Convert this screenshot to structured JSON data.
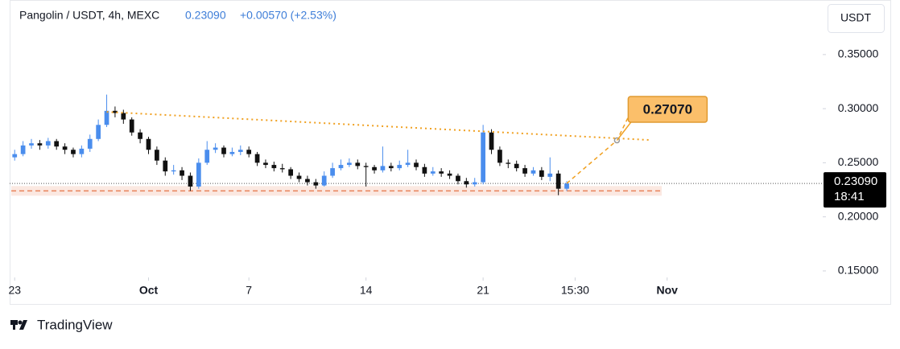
{
  "header": {
    "symbol": "Pangolin / USDT, 4h, MEXC",
    "price": "0.23090",
    "change": "+0.00570 (+2.53%)",
    "currency_button": "USDT"
  },
  "footer": {
    "brand": "TradingView"
  },
  "chart_data": {
    "type": "candlestick",
    "x": [
      0,
      0.5,
      1,
      1.5,
      2,
      2.5,
      3,
      3.5,
      4,
      4.5,
      5,
      5.5,
      6,
      6.5,
      7,
      7.5,
      8,
      8.5,
      9,
      9.5,
      10,
      10.5,
      11,
      11.5,
      12,
      12.5,
      13,
      13.5,
      14,
      14.5,
      15,
      15.5,
      16,
      16.5,
      17,
      17.5,
      18,
      18.5,
      19,
      19.5,
      20,
      20.5,
      21,
      21.5,
      22,
      22.5,
      23,
      23.5,
      24,
      24.5,
      25,
      25.5,
      26,
      26.5,
      27,
      27.5,
      28,
      28.5,
      29,
      29.5,
      30,
      30.5,
      31,
      31.5,
      32,
      32.5,
      33
    ],
    "open": [
      0.255,
      0.258,
      0.266,
      0.268,
      0.266,
      0.27,
      0.265,
      0.262,
      0.258,
      0.263,
      0.272,
      0.285,
      0.298,
      0.296,
      0.29,
      0.278,
      0.272,
      0.262,
      0.252,
      0.242,
      0.243,
      0.238,
      0.228,
      0.25,
      0.262,
      0.264,
      0.258,
      0.26,
      0.262,
      0.258,
      0.25,
      0.248,
      0.245,
      0.244,
      0.238,
      0.235,
      0.232,
      0.229,
      0.238,
      0.245,
      0.248,
      0.25,
      0.247,
      0.246,
      0.243,
      0.247,
      0.245,
      0.248,
      0.25,
      0.246,
      0.24,
      0.242,
      0.24,
      0.238,
      0.233,
      0.23,
      0.232,
      0.278,
      0.262,
      0.25,
      0.249,
      0.245,
      0.24,
      0.243,
      0.237,
      0.24,
      0.226
    ],
    "high": [
      0.262,
      0.27,
      0.272,
      0.271,
      0.273,
      0.272,
      0.268,
      0.264,
      0.266,
      0.276,
      0.29,
      0.313,
      0.302,
      0.299,
      0.292,
      0.281,
      0.274,
      0.265,
      0.255,
      0.248,
      0.246,
      0.241,
      0.254,
      0.27,
      0.268,
      0.266,
      0.264,
      0.266,
      0.265,
      0.26,
      0.253,
      0.251,
      0.249,
      0.246,
      0.241,
      0.238,
      0.235,
      0.242,
      0.25,
      0.253,
      0.254,
      0.253,
      0.25,
      0.248,
      0.265,
      0.25,
      0.252,
      0.262,
      0.253,
      0.249,
      0.246,
      0.245,
      0.243,
      0.24,
      0.236,
      0.236,
      0.285,
      0.281,
      0.265,
      0.253,
      0.252,
      0.248,
      0.246,
      0.246,
      0.255,
      0.243,
      0.233
    ],
    "low": [
      0.252,
      0.256,
      0.263,
      0.262,
      0.263,
      0.262,
      0.258,
      0.255,
      0.255,
      0.26,
      0.27,
      0.283,
      0.292,
      0.286,
      0.275,
      0.268,
      0.258,
      0.248,
      0.238,
      0.239,
      0.234,
      0.224,
      0.226,
      0.248,
      0.259,
      0.255,
      0.256,
      0.257,
      0.255,
      0.247,
      0.245,
      0.242,
      0.241,
      0.235,
      0.232,
      0.229,
      0.226,
      0.228,
      0.236,
      0.243,
      0.246,
      0.244,
      0.228,
      0.24,
      0.241,
      0.242,
      0.243,
      0.246,
      0.243,
      0.237,
      0.238,
      0.237,
      0.235,
      0.23,
      0.227,
      0.228,
      0.23,
      0.258,
      0.247,
      0.245,
      0.242,
      0.237,
      0.238,
      0.234,
      0.233,
      0.22,
      0.224
    ],
    "close": [
      0.258,
      0.266,
      0.268,
      0.266,
      0.27,
      0.265,
      0.262,
      0.258,
      0.263,
      0.272,
      0.285,
      0.298,
      0.296,
      0.29,
      0.278,
      0.272,
      0.262,
      0.252,
      0.242,
      0.243,
      0.238,
      0.228,
      0.25,
      0.262,
      0.264,
      0.258,
      0.26,
      0.262,
      0.258,
      0.25,
      0.248,
      0.245,
      0.244,
      0.238,
      0.235,
      0.232,
      0.229,
      0.238,
      0.245,
      0.248,
      0.25,
      0.247,
      0.246,
      0.243,
      0.247,
      0.245,
      0.248,
      0.25,
      0.246,
      0.24,
      0.242,
      0.24,
      0.238,
      0.233,
      0.23,
      0.232,
      0.278,
      0.262,
      0.25,
      0.249,
      0.245,
      0.24,
      0.243,
      0.237,
      0.24,
      0.226,
      0.2309
    ],
    "up_color": "#4a8ded",
    "down_color": "#111111",
    "xlim": [
      -0.3,
      48.3
    ],
    "xticks": [
      {
        "value": 0,
        "label": "23"
      },
      {
        "value": 8,
        "label": "Oct"
      },
      {
        "value": 14,
        "label": "7"
      },
      {
        "value": 21,
        "label": "14"
      },
      {
        "value": 28,
        "label": "21"
      },
      {
        "value": 33.5,
        "label": "15:30"
      },
      {
        "value": 39,
        "label": "Nov"
      }
    ],
    "ylim": [
      0.144,
      0.3707
    ],
    "yticks": [
      {
        "value": 0.15,
        "label": "0.15000"
      },
      {
        "value": 0.2,
        "label": "0.20000"
      },
      {
        "value": 0.25,
        "label": "0.25000"
      },
      {
        "value": 0.3,
        "label": "0.30000"
      },
      {
        "value": 0.35,
        "label": "0.35000"
      }
    ],
    "last_price": {
      "value": 0.2309,
      "label": "0.23090",
      "countdown": "18:41"
    },
    "trendline": {
      "x": [
        5.5,
        38
      ],
      "y": [
        0.297,
        0.271
      ],
      "color": "#f0a020"
    },
    "projection": {
      "x": [
        33,
        36,
        37.3
      ],
      "y": [
        0.2309,
        0.2707,
        0.312
      ],
      "color": "#f0a020"
    },
    "target": {
      "x": 36,
      "value": 0.2707,
      "label": "0.27070"
    },
    "support": {
      "value": 0.224,
      "color": "#e8825a"
    }
  }
}
